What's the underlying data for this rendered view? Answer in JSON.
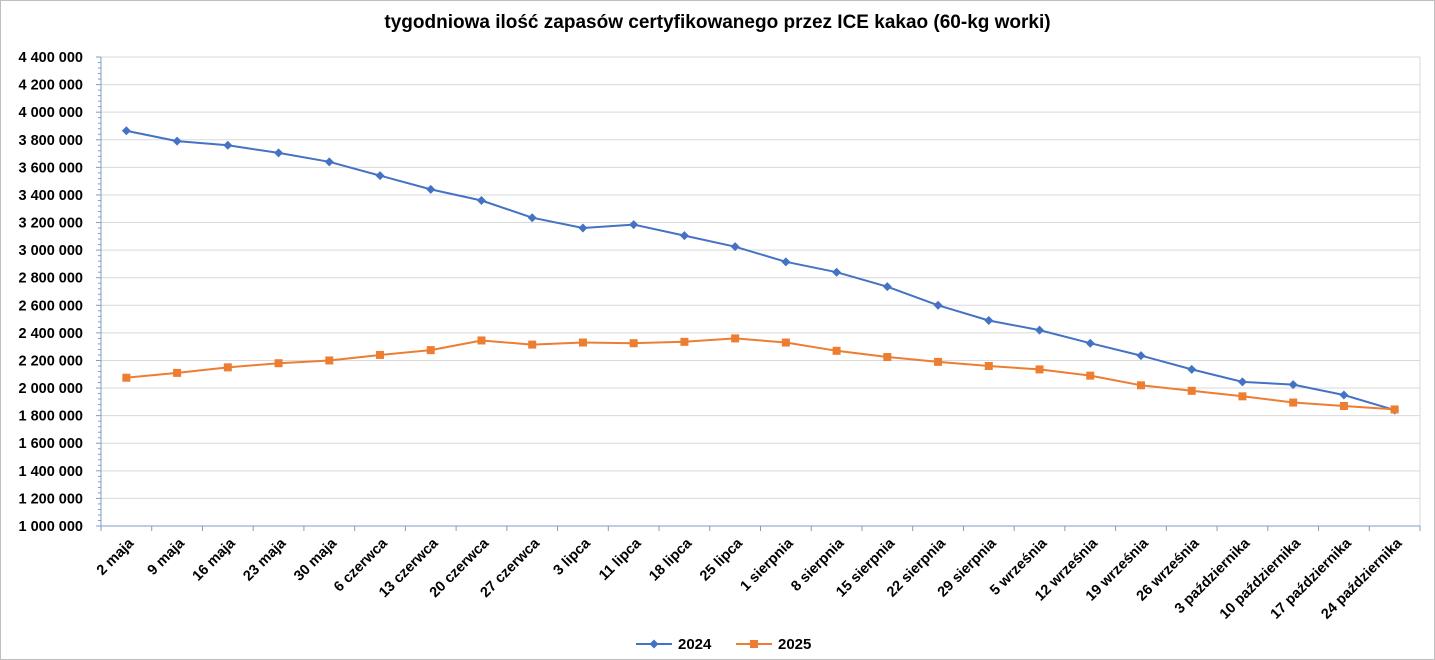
{
  "chart_data": {
    "type": "line",
    "title": "tygodniowa ilość zapasów certyfikowanego przez ICE kakao (60-kg worki)",
    "xlabel": "",
    "ylabel": "",
    "ylim": [
      1000000,
      4400000
    ],
    "yticks": [
      1000000,
      1200000,
      1400000,
      1600000,
      1800000,
      2000000,
      2200000,
      2400000,
      2600000,
      2800000,
      3000000,
      3200000,
      3400000,
      3600000,
      3800000,
      4000000,
      4200000,
      4400000
    ],
    "ytick_labels": [
      "1 000 000",
      "1 200 000",
      "1 400 000",
      "1 600 000",
      "1 800 000",
      "2 000 000",
      "2 200 000",
      "2 400 000",
      "2 600 000",
      "2 800 000",
      "3 000 000",
      "3 200 000",
      "3 400 000",
      "3 600 000",
      "3 800 000",
      "4 000 000",
      "4 200 000",
      "4 400 000"
    ],
    "categories": [
      "2 maja",
      "9 maja",
      "16 maja",
      "23 maja",
      "30 maja",
      "6 czerwca",
      "13 czerwca",
      "20 czerwca",
      "27 czerwca",
      "3 lipca",
      "11 lipca",
      "18 lipca",
      "25 lipca",
      "1 sierpnia",
      "8 sierpnia",
      "15 sierpnia",
      "22 sierpnia",
      "29 sierpnia",
      "5 września",
      "12 września",
      "19 września",
      "26 września",
      "3 października",
      "10 października",
      "17 października",
      "24 października"
    ],
    "grid": true,
    "legend_position": "bottom",
    "series": [
      {
        "name": "2024",
        "color": "#4472C4",
        "marker": "diamond",
        "values": [
          3865000,
          3790000,
          3760000,
          3705000,
          3640000,
          3540000,
          3440000,
          3360000,
          3235000,
          3160000,
          3185000,
          3105000,
          3025000,
          2915000,
          2840000,
          2735000,
          2600000,
          2490000,
          2420000,
          2325000,
          2235000,
          2135000,
          2045000,
          2025000,
          1950000,
          1840000
        ]
      },
      {
        "name": "2025",
        "color": "#ED7D31",
        "marker": "square",
        "values": [
          2075000,
          2110000,
          2150000,
          2180000,
          2200000,
          2240000,
          2275000,
          2345000,
          2315000,
          2330000,
          2325000,
          2335000,
          2360000,
          2330000,
          2270000,
          2225000,
          2190000,
          2160000,
          2135000,
          2090000,
          2020000,
          1980000,
          1940000,
          1895000,
          1870000,
          1845000
        ]
      }
    ]
  }
}
